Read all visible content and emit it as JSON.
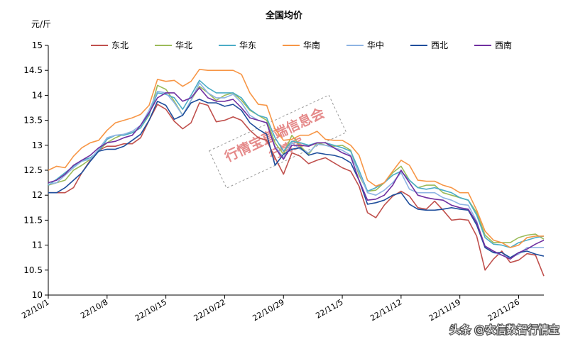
{
  "chart_data": {
    "type": "line",
    "title": "全国均价",
    "ylabel": "元/斤",
    "ylim": [
      10,
      15
    ],
    "yticks": [
      "10",
      "10.5",
      "11",
      "11.5",
      "12",
      "12.5",
      "13",
      "13.5",
      "14",
      "14.5",
      "15"
    ],
    "xticks": [
      "22/10/1",
      "22/10/8",
      "22/10/15",
      "22/10/22",
      "22/10/29",
      "22/11/5",
      "22/11/12",
      "22/11/19",
      "22/11/26"
    ],
    "legend_position": "top",
    "grid": false,
    "series": [
      {
        "name": "东北",
        "color": "#c0504d",
        "values": [
          12.05,
          12.05,
          12.05,
          12.15,
          12.45,
          12.7,
          12.9,
          12.98,
          12.98,
          13.03,
          13.03,
          13.15,
          13.5,
          13.82,
          13.72,
          13.48,
          13.33,
          13.45,
          13.85,
          13.8,
          13.47,
          13.5,
          13.57,
          13.5,
          13.3,
          13.15,
          13.1,
          12.75,
          12.42,
          12.85,
          12.78,
          12.63,
          12.7,
          12.75,
          12.65,
          12.55,
          12.48,
          12.18,
          11.65,
          11.55,
          11.8,
          11.98,
          12.08,
          11.98,
          11.75,
          11.72,
          11.88,
          11.7,
          11.5,
          11.52,
          11.5,
          11.18,
          10.5,
          10.72,
          10.88,
          10.65,
          10.7,
          10.83,
          10.8,
          10.38
        ]
      },
      {
        "name": "华北",
        "color": "#9bbb59",
        "values": [
          12.2,
          12.25,
          12.3,
          12.5,
          12.6,
          12.72,
          12.9,
          13.05,
          13.15,
          13.22,
          13.25,
          13.35,
          13.6,
          14.2,
          14.12,
          13.88,
          13.6,
          13.9,
          14.18,
          14.05,
          13.9,
          14,
          14.05,
          13.9,
          13.7,
          13.6,
          13.5,
          13.05,
          12.82,
          13.2,
          12.98,
          12.82,
          13.05,
          13,
          12.98,
          13,
          12.9,
          12.4,
          12.08,
          12.1,
          12.25,
          12.45,
          12.58,
          12.3,
          12.15,
          12.2,
          12.2,
          12.05,
          12,
          11.95,
          11.9,
          11.65,
          11.2,
          11.05,
          11.05,
          11.05,
          11.15,
          11.2,
          11.22,
          11.12
        ]
      },
      {
        "name": "华东",
        "color": "#4bacc6",
        "values": [
          12.2,
          12.32,
          12.45,
          12.58,
          12.7,
          12.75,
          12.88,
          13.12,
          13.2,
          13.2,
          13.25,
          13.35,
          13.62,
          14.05,
          14.02,
          13.95,
          13.72,
          14,
          14.3,
          14.15,
          14.05,
          14.05,
          14.05,
          13.95,
          13.72,
          13.6,
          13.55,
          13.15,
          12.88,
          13.08,
          13.05,
          13,
          13.05,
          13.05,
          13,
          12.95,
          12.88,
          12.5,
          12.08,
          12.15,
          12.25,
          12.4,
          12.48,
          12.3,
          12.15,
          12.12,
          12.15,
          12.1,
          12.05,
          11.95,
          11.9,
          11.6,
          11.15,
          11.02,
          11,
          10.95,
          11.05,
          11.1,
          11.15,
          11.18
        ]
      },
      {
        "name": "华南",
        "color": "#f79646",
        "values": [
          12.5,
          12.58,
          12.55,
          12.78,
          12.95,
          13.05,
          13.1,
          13.3,
          13.45,
          13.5,
          13.55,
          13.62,
          13.8,
          14.32,
          14.28,
          14.3,
          14.18,
          14.28,
          14.52,
          14.5,
          14.5,
          14.5,
          14.5,
          14.42,
          14.05,
          13.82,
          13.8,
          13.32,
          13.1,
          13.12,
          13.2,
          13.2,
          13.28,
          13.12,
          13.1,
          13.1,
          13,
          12.8,
          12.3,
          12.18,
          12.25,
          12.48,
          12.7,
          12.6,
          12.3,
          12.28,
          12.28,
          12.2,
          12.15,
          12.05,
          12.05,
          11.7,
          11.28,
          11.1,
          11.05,
          10.95,
          11,
          11.15,
          11.18,
          11.18
        ]
      },
      {
        "name": "华中",
        "color": "#8eb4e3",
        "values": [
          12.22,
          12.25,
          12.4,
          12.55,
          12.68,
          12.72,
          12.92,
          13.15,
          13.2,
          13.22,
          13.28,
          13.4,
          13.7,
          14.08,
          14.05,
          13.85,
          13.6,
          13.9,
          14.25,
          14.05,
          13.95,
          13.95,
          14.02,
          13.85,
          13.6,
          13.5,
          13.45,
          12.98,
          12.75,
          13.05,
          12.92,
          12.85,
          13.02,
          13,
          12.95,
          12.9,
          12.8,
          12.45,
          12.05,
          12,
          12.1,
          12.25,
          12.45,
          12.12,
          12.05,
          12.05,
          12.05,
          11.95,
          11.9,
          11.82,
          11.8,
          11.48,
          10.95,
          10.85,
          10.8,
          10.75,
          10.82,
          10.95,
          10.95,
          10.95
        ]
      },
      {
        "name": "西北",
        "color": "#1f4e9c",
        "values": [
          12.05,
          12.05,
          12.15,
          12.3,
          12.45,
          12.68,
          12.88,
          12.92,
          12.92,
          12.98,
          13.1,
          13.22,
          13.5,
          13.88,
          13.8,
          13.52,
          13.6,
          13.85,
          13.92,
          13.85,
          13.85,
          13.78,
          13.82,
          13.7,
          13.45,
          13.32,
          13.22,
          12.6,
          12.82,
          12.92,
          12.95,
          12.8,
          12.85,
          12.82,
          12.8,
          12.75,
          12.65,
          12.3,
          11.82,
          11.85,
          11.9,
          12,
          12.05,
          11.82,
          11.72,
          11.7,
          11.7,
          11.72,
          11.75,
          11.72,
          11.7,
          11.4,
          10.95,
          10.85,
          10.85,
          10.75,
          10.85,
          10.88,
          10.82,
          10.78
        ]
      },
      {
        "name": "西南",
        "color": "#7030a0",
        "values": [
          12.25,
          12.3,
          12.42,
          12.6,
          12.7,
          12.8,
          12.95,
          13.05,
          13.08,
          13.15,
          13.2,
          13.4,
          13.65,
          13.95,
          14.05,
          14.05,
          13.88,
          13.95,
          14.15,
          13.95,
          13.88,
          13.88,
          13.92,
          13.75,
          13.55,
          13.5,
          13.45,
          12.95,
          12.72,
          13,
          13,
          12.98,
          13.05,
          13.05,
          12.95,
          12.85,
          12.78,
          12.3,
          11.9,
          11.92,
          12,
          12.2,
          12.5,
          12.25,
          12,
          11.95,
          11.92,
          11.9,
          11.8,
          11.75,
          11.72,
          11.45,
          10.98,
          10.88,
          10.8,
          10.72,
          10.85,
          10.92,
          11.02,
          11.1
        ]
      }
    ]
  },
  "watermark": {
    "line1": "行情宝直端信息会",
    "line2": "行情宝"
  },
  "footer": {
    "text": "头条 @农信数智行情宝"
  }
}
